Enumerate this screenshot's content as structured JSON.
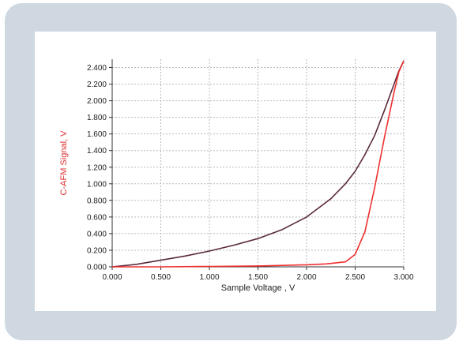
{
  "chart_data": {
    "type": "line",
    "title": "",
    "xlabel": "Sample Voltage , V",
    "ylabel": "C-AFM Signal, V",
    "xlim": [
      0,
      3.0
    ],
    "ylim": [
      0,
      2.5
    ],
    "x_ticks": [
      "0.000",
      "0.500",
      "1.000",
      "1.500",
      "2.000",
      "2.500",
      "3.000"
    ],
    "y_ticks": [
      "0.000",
      "0.200",
      "0.400",
      "0.600",
      "0.800",
      "1.000",
      "1.200",
      "1.400",
      "1.600",
      "1.800",
      "2.000",
      "2.200",
      "2.400"
    ],
    "grid": true,
    "series": [
      {
        "color": "#5a2a3a",
        "x": [
          0.0,
          0.25,
          0.5,
          0.75,
          1.0,
          1.25,
          1.5,
          1.75,
          2.0,
          2.25,
          2.4,
          2.5,
          2.6,
          2.7,
          2.8,
          2.9,
          2.95,
          3.0
        ],
        "y": [
          0.0,
          0.03,
          0.08,
          0.13,
          0.19,
          0.26,
          0.34,
          0.45,
          0.6,
          0.82,
          1.0,
          1.15,
          1.35,
          1.58,
          1.88,
          2.2,
          2.36,
          2.48
        ]
      },
      {
        "color": "#ee3030",
        "x": [
          0.0,
          0.5,
          1.0,
          1.5,
          2.0,
          2.2,
          2.4,
          2.5,
          2.6,
          2.7,
          2.8,
          2.9,
          2.95,
          3.0
        ],
        "y": [
          0.0,
          0.0,
          0.005,
          0.01,
          0.025,
          0.035,
          0.06,
          0.15,
          0.42,
          0.95,
          1.55,
          2.1,
          2.35,
          2.48
        ]
      }
    ]
  },
  "colors": {
    "axis_label_x": "#222222",
    "axis_label_y": "#e03030"
  }
}
